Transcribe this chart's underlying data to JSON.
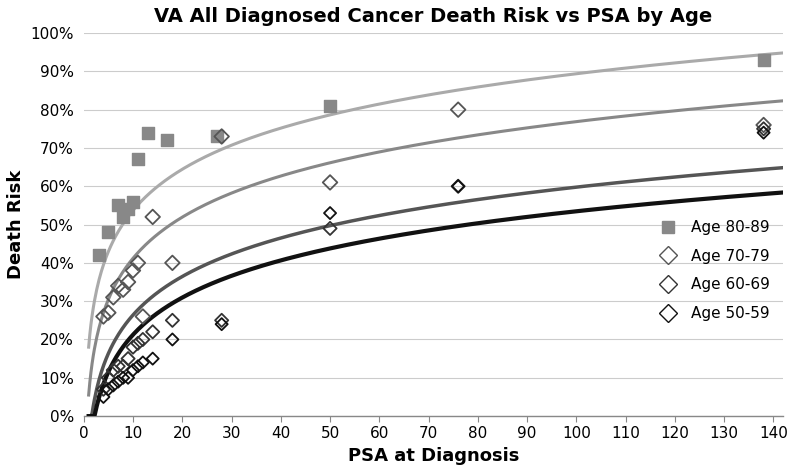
{
  "title": "VA All Diagnosed Cancer Death Risk vs PSA by Age",
  "xlabel": "PSA at Diagnosis",
  "ylabel": "Death Risk",
  "xlim": [
    0,
    142
  ],
  "ylim": [
    0,
    1.0
  ],
  "xticks": [
    0,
    10,
    20,
    30,
    40,
    50,
    60,
    70,
    80,
    90,
    100,
    110,
    120,
    130,
    140
  ],
  "yticks": [
    0.0,
    0.1,
    0.2,
    0.3,
    0.4,
    0.5,
    0.6,
    0.7,
    0.8,
    0.9,
    1.0
  ],
  "background_color": "#ffffff",
  "scatter_8089": {
    "x": [
      3,
      5,
      7,
      8,
      9,
      10,
      11,
      13,
      17,
      27,
      50,
      138
    ],
    "y": [
      0.42,
      0.48,
      0.55,
      0.52,
      0.54,
      0.56,
      0.67,
      0.74,
      0.72,
      0.73,
      0.81,
      0.93
    ],
    "color": "#888888",
    "marker": "s",
    "size": 65
  },
  "scatter_7079": {
    "x": [
      4,
      5,
      6,
      7,
      8,
      9,
      10,
      11,
      12,
      14,
      18,
      28,
      50,
      76,
      138
    ],
    "y": [
      0.26,
      0.27,
      0.31,
      0.34,
      0.33,
      0.35,
      0.38,
      0.4,
      0.26,
      0.52,
      0.4,
      0.73,
      0.61,
      0.8,
      0.76
    ],
    "color": "#555555",
    "marker": "D",
    "size": 55
  },
  "scatter_6069": {
    "x": [
      4,
      5,
      6,
      7,
      8,
      9,
      10,
      11,
      12,
      14,
      18,
      28,
      50,
      76,
      138
    ],
    "y": [
      0.07,
      0.1,
      0.12,
      0.13,
      0.13,
      0.15,
      0.18,
      0.19,
      0.2,
      0.22,
      0.25,
      0.25,
      0.49,
      0.6,
      0.75
    ],
    "color": "#333333",
    "marker": "D",
    "size": 45
  },
  "scatter_5059": {
    "x": [
      4,
      5,
      6,
      7,
      8,
      9,
      10,
      11,
      12,
      14,
      18,
      28,
      50,
      76,
      138
    ],
    "y": [
      0.05,
      0.07,
      0.08,
      0.09,
      0.1,
      0.1,
      0.12,
      0.13,
      0.14,
      0.15,
      0.2,
      0.24,
      0.53,
      0.6,
      0.74
    ],
    "color": "#111111",
    "marker": "D",
    "size": 38
  },
  "curve_8089": {
    "color": "#aaaaaa",
    "lw": 2.2
  },
  "curve_7079": {
    "color": "#888888",
    "lw": 2.2
  },
  "curve_6069": {
    "color": "#555555",
    "lw": 2.5
  },
  "curve_5059": {
    "color": "#111111",
    "lw": 3.0
  },
  "legend_entries": [
    {
      "label": "Age 80-89",
      "color": "#888888",
      "marker": "s"
    },
    {
      "label": "Age 70-79",
      "color": "#555555",
      "marker": "D"
    },
    {
      "label": "Age 60-69",
      "color": "#333333",
      "marker": "D"
    },
    {
      "label": "Age 50-59",
      "color": "#111111",
      "marker": "D"
    }
  ]
}
